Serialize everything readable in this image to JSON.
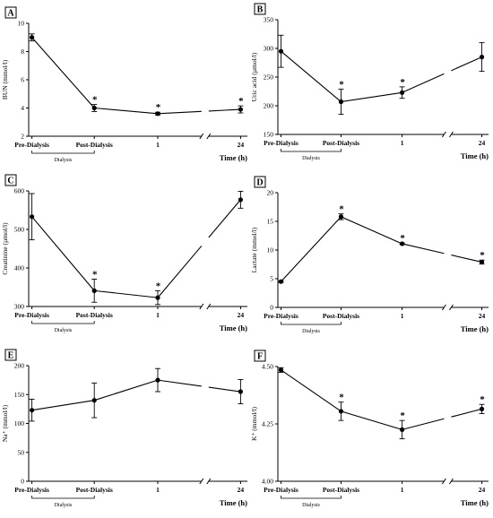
{
  "chart_data": [
    {
      "panel": "A",
      "type": "line",
      "categories": [
        "Pre-Dialysis",
        "Post-Dialysis",
        "1",
        "24"
      ],
      "xlabel": "Time (h)",
      "ylabel": "BUN (mmol/l)",
      "ylim": [
        2,
        10
      ],
      "yticks": [
        "2",
        "4",
        "6",
        "8",
        "10"
      ],
      "values": [
        9.0,
        4.0,
        3.6,
        3.9
      ],
      "errors": [
        0.25,
        0.25,
        0.1,
        0.25
      ],
      "significant": [
        false,
        true,
        true,
        true
      ],
      "sig_marker": "*",
      "bracket_label": "Dialysis"
    },
    {
      "panel": "B",
      "type": "line",
      "categories": [
        "Pre-Dialysis",
        "Post-Dialysis",
        "1",
        "24"
      ],
      "xlabel": "Time (h)",
      "ylabel": "Uric acid (µmol/l)",
      "ylim": [
        150,
        350
      ],
      "yticks": [
        "150",
        "200",
        "250",
        "300",
        "350"
      ],
      "values": [
        295,
        207,
        223,
        285
      ],
      "errors": [
        28,
        22,
        10,
        25
      ],
      "significant": [
        false,
        true,
        true,
        false
      ],
      "sig_marker": "*",
      "bracket_label": "Dialysis"
    },
    {
      "panel": "C",
      "type": "line",
      "categories": [
        "Pre-Dialysis",
        "Post-Dialysis",
        "1",
        "24"
      ],
      "xlabel": "Time (h)",
      "ylabel": "Creatinine (µmol/l)",
      "ylim": [
        300,
        600
      ],
      "yticks": [
        "300",
        "400",
        "500",
        "600"
      ],
      "values": [
        533,
        341,
        323,
        577
      ],
      "errors": [
        60,
        30,
        18,
        22
      ],
      "significant": [
        false,
        true,
        true,
        false
      ],
      "sig_marker": "*",
      "bracket_label": "Dialysis"
    },
    {
      "panel": "D",
      "type": "line",
      "categories": [
        "Pre-Dialysis",
        "Post-Dialysis",
        "1",
        "24"
      ],
      "xlabel": "Time (h)",
      "ylabel": "Lactate (mmol/l)",
      "ylim": [
        0,
        20
      ],
      "yticks": [
        "0",
        "5",
        "10",
        "15",
        "20"
      ],
      "values": [
        4.5,
        15.8,
        11.1,
        7.9
      ],
      "errors": [
        0.15,
        0.5,
        0.15,
        0.35
      ],
      "significant": [
        false,
        true,
        true,
        true
      ],
      "sig_marker": "*",
      "bracket_label": "Dialysis"
    },
    {
      "panel": "E",
      "type": "line",
      "categories": [
        "Pre-Dialysis",
        "Post-Dialysis",
        "1",
        "24"
      ],
      "xlabel": "Time (h)",
      "ylabel": "Na⁺ (mmol/l)",
      "ylim": [
        0,
        200
      ],
      "yticks": [
        "0",
        "50",
        "100",
        "150",
        "200"
      ],
      "values": [
        123,
        140,
        175,
        155
      ],
      "errors": [
        19,
        30,
        20,
        21
      ],
      "significant": [
        false,
        false,
        false,
        false
      ],
      "sig_marker": "*",
      "bracket_label": "Dialysis"
    },
    {
      "panel": "F",
      "type": "line",
      "categories": [
        "Pre-Dialysis",
        "Post-Dialysis",
        "1",
        "24"
      ],
      "xlabel": "Time (h)",
      "ylabel": "K⁺ (mmol/l)",
      "ylim": [
        4.0,
        4.5
      ],
      "yticks": [
        "4.00",
        "4.25",
        "4.50"
      ],
      "values": [
        4.485,
        4.305,
        4.225,
        4.315
      ],
      "errors": [
        0.01,
        0.04,
        0.04,
        0.02
      ],
      "significant": [
        false,
        true,
        true,
        true
      ],
      "sig_marker": "*",
      "bracket_label": "Dialysis"
    }
  ]
}
